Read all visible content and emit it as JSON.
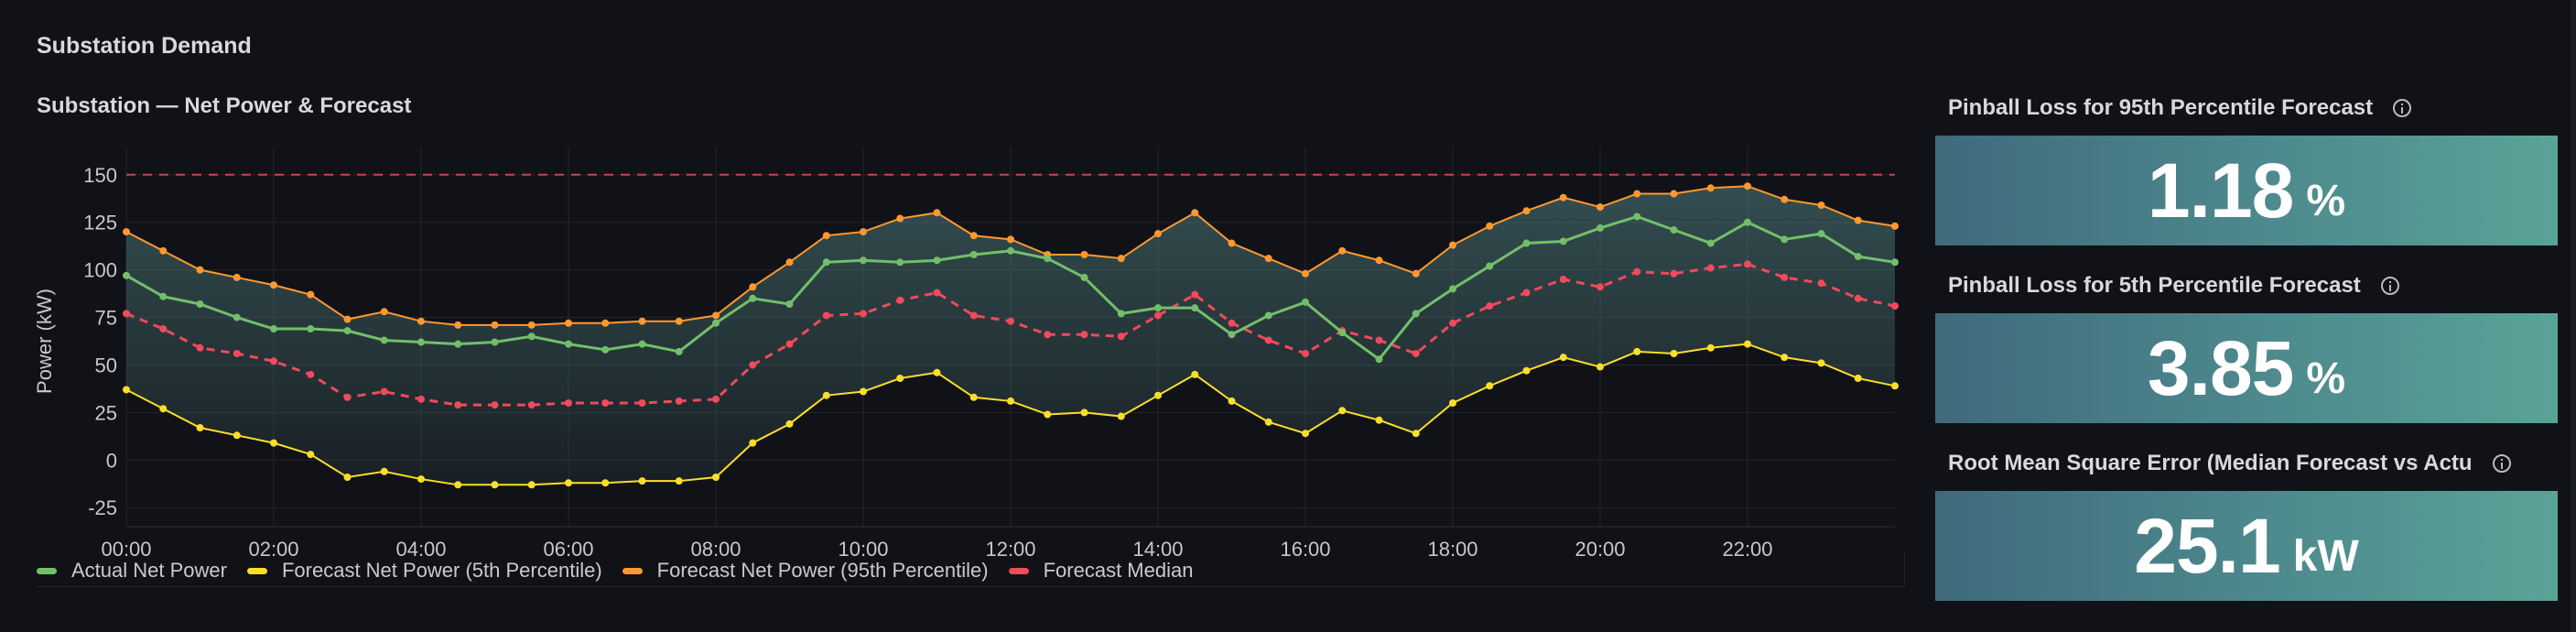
{
  "dashboard": {
    "row_title": "Substation Demand"
  },
  "timeseries": {
    "title": "Substation — Net Power & Forecast"
  },
  "colors": {
    "actual": "#73bf69",
    "p5": "#fade2a",
    "p95": "#ff9830",
    "median": "#f2495c",
    "threshold": "#c4464a",
    "band": "#4f7f80"
  },
  "chart_data": {
    "type": "line",
    "ylabel": "Power (kW)",
    "ylim": [
      -35,
      160
    ],
    "y_ticks": [
      -25,
      0,
      25,
      50,
      75,
      100,
      125,
      150
    ],
    "x_ticks": [
      "00:00",
      "02:00",
      "04:00",
      "06:00",
      "08:00",
      "10:00",
      "12:00",
      "14:00",
      "16:00",
      "18:00",
      "20:00",
      "22:00"
    ],
    "x_unit": "hour",
    "xlim": [
      0,
      24
    ],
    "threshold": 150,
    "x": [
      0,
      0.5,
      1,
      1.5,
      2,
      2.5,
      3,
      3.5,
      4,
      4.5,
      5,
      5.5,
      6,
      6.5,
      7,
      7.5,
      8,
      8.5,
      9,
      9.5,
      10,
      10.5,
      11,
      11.5,
      12,
      12.5,
      13,
      13.5,
      14,
      14.5,
      15,
      15.5,
      16,
      16.5,
      17,
      17.5,
      18,
      18.5,
      19,
      19.5,
      20,
      20.5,
      21,
      21.5,
      22,
      22.5,
      23,
      23.5,
      24
    ],
    "series": [
      {
        "name": "Forecast Net Power (95th Percentile)",
        "key": "p95",
        "values": [
          120,
          110,
          100,
          96,
          92,
          87,
          74,
          78,
          73,
          71,
          71,
          71,
          72,
          72,
          73,
          73,
          76,
          91,
          104,
          118,
          120,
          127,
          130,
          118,
          116,
          108,
          108,
          106,
          119,
          130,
          114,
          106,
          98,
          110,
          105,
          98,
          113,
          123,
          131,
          138,
          133,
          140,
          140,
          143,
          144,
          137,
          134,
          126,
          123
        ]
      },
      {
        "name": "Actual Net Power",
        "key": "actual",
        "values": [
          97,
          86,
          82,
          75,
          69,
          69,
          68,
          63,
          62,
          61,
          62,
          65,
          61,
          58,
          61,
          57,
          72,
          85,
          82,
          104,
          105,
          104,
          105,
          108,
          110,
          106,
          96,
          77,
          80,
          80,
          66,
          76,
          83,
          67,
          53,
          77,
          90,
          102,
          114,
          115,
          122,
          128,
          121,
          114,
          125,
          116,
          119,
          107,
          104
        ]
      },
      {
        "name": "Forecast Median",
        "key": "median",
        "values": [
          77,
          69,
          59,
          56,
          52,
          45,
          33,
          36,
          32,
          29,
          29,
          29,
          30,
          30,
          30,
          31,
          32,
          50,
          61,
          76,
          77,
          84,
          88,
          76,
          73,
          66,
          66,
          65,
          76,
          87,
          72,
          63,
          56,
          68,
          63,
          56,
          72,
          81,
          88,
          95,
          91,
          99,
          98,
          101,
          103,
          96,
          93,
          85,
          81
        ]
      },
      {
        "name": "Forecast Net Power (5th Percentile)",
        "key": "p5",
        "values": [
          37,
          27,
          17,
          13,
          9,
          3,
          -9,
          -6,
          -10,
          -13,
          -13,
          -13,
          -12,
          -12,
          -11,
          -11,
          -9,
          9,
          19,
          34,
          36,
          43,
          46,
          33,
          31,
          24,
          25,
          23,
          34,
          45,
          31,
          20,
          14,
          26,
          21,
          14,
          30,
          39,
          47,
          54,
          49,
          57,
          56,
          59,
          61,
          54,
          51,
          43,
          39
        ]
      }
    ],
    "legend_order": [
      "Actual Net Power",
      "Forecast Net Power (5th Percentile)",
      "Forecast Net Power (95th Percentile)",
      "Forecast Median"
    ],
    "legend": "bottom-left",
    "grid": true
  },
  "stats": [
    {
      "title": "Pinball Loss for 95th Percentile Forecast",
      "value": "1.18",
      "unit": "%"
    },
    {
      "title": "Pinball Loss for 5th Percentile Forecast",
      "value": "3.85",
      "unit": "%"
    },
    {
      "title": "Root Mean Square Error (Median Forecast vs Actu",
      "value": "25.1",
      "unit": "kW"
    }
  ]
}
